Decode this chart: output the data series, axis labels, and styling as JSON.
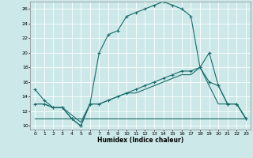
{
  "xlabel": "Humidex (Indice chaleur)",
  "xlim": [
    -0.5,
    23.5
  ],
  "ylim": [
    9.5,
    27
  ],
  "yticks": [
    10,
    12,
    14,
    16,
    18,
    20,
    22,
    24,
    26
  ],
  "xticks": [
    0,
    1,
    2,
    3,
    4,
    5,
    6,
    7,
    8,
    9,
    10,
    11,
    12,
    13,
    14,
    15,
    16,
    17,
    18,
    19,
    20,
    21,
    22,
    23
  ],
  "bg_color": "#cce8e8",
  "line_color": "#1a6b6b",
  "grid_color": "#ffffff",
  "line1_x": [
    0,
    1,
    2,
    3,
    4,
    5,
    6,
    7,
    8,
    9,
    10,
    11,
    12,
    13,
    14,
    15,
    16,
    17,
    18,
    19,
    20,
    21,
    22,
    23
  ],
  "line1_y": [
    15,
    13.5,
    12.5,
    12.5,
    11,
    10,
    13,
    20,
    22.5,
    23,
    25,
    25.5,
    26,
    26.5,
    27,
    26.5,
    26,
    25,
    18,
    20,
    15.5,
    13,
    13,
    11
  ],
  "line2_x": [
    0,
    1,
    2,
    3,
    4,
    5,
    6,
    7,
    8,
    9,
    10,
    11,
    12,
    13,
    14,
    15,
    16,
    17,
    18,
    19,
    20,
    21,
    22,
    23
  ],
  "line2_y": [
    13,
    13,
    12.5,
    12.5,
    11,
    10,
    13,
    13,
    13.5,
    14,
    14.5,
    15,
    15.5,
    16,
    16.5,
    17,
    17.5,
    17.5,
    18,
    16,
    15.5,
    13,
    13,
    11
  ],
  "line3_x": [
    0,
    1,
    2,
    3,
    4,
    5,
    6,
    7,
    8,
    9,
    10,
    11,
    12,
    13,
    14,
    15,
    16,
    17,
    18,
    19,
    20,
    21,
    22,
    23
  ],
  "line3_y": [
    13,
    13,
    12.5,
    12.5,
    11.5,
    10.5,
    13,
    13,
    13.5,
    14,
    14.5,
    14.5,
    15,
    15.5,
    16,
    16.5,
    17,
    17,
    18,
    15.5,
    13,
    13,
    13,
    11
  ],
  "line4_x": [
    0,
    23
  ],
  "line4_y": [
    11,
    11
  ]
}
